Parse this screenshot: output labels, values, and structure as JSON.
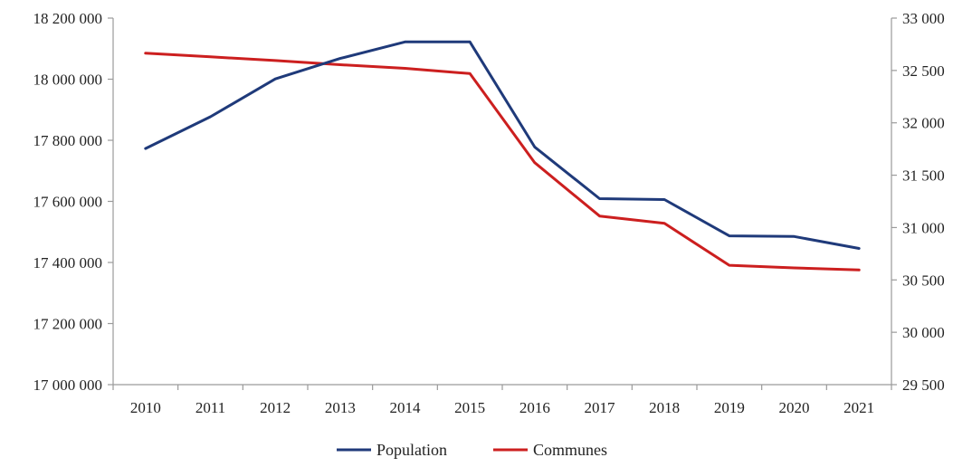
{
  "chart_data": {
    "type": "line",
    "title": "",
    "x": [
      "2010",
      "2011",
      "2012",
      "2013",
      "2014",
      "2015",
      "2016",
      "2017",
      "2018",
      "2019",
      "2020",
      "2021"
    ],
    "series": [
      {
        "name": "Population",
        "axis": "left",
        "color": "#1f3a7a",
        "values": [
          17773000,
          17877000,
          18001000,
          18068000,
          18122000,
          18122000,
          17778000,
          17609000,
          17606000,
          17487000,
          17485000,
          17446000
        ]
      },
      {
        "name": "Communes",
        "axis": "right",
        "color": "#cc1f1f",
        "values": [
          32665,
          32630,
          32595,
          32555,
          32520,
          32470,
          31620,
          31110,
          31040,
          30640,
          30615,
          30595
        ]
      }
    ],
    "y_left": {
      "ylim": [
        17000000,
        18200000
      ],
      "ticks": [
        17000000,
        17200000,
        17400000,
        17600000,
        17800000,
        18000000,
        18200000
      ],
      "tick_labels": [
        "17 000 000",
        "17 200 000",
        "17 400 000",
        "17 600 000",
        "17 800 000",
        "18 000 000",
        "18 200 000"
      ]
    },
    "y_right": {
      "ylim": [
        29500,
        33000
      ],
      "ticks": [
        29500,
        30000,
        30500,
        31000,
        31500,
        32000,
        32500,
        33000
      ],
      "tick_labels": [
        "29 500",
        "30 000",
        "30 500",
        "31 000",
        "31 500",
        "32 000",
        "32 500",
        "33 000"
      ]
    },
    "grid": false,
    "legend": "bottom"
  }
}
